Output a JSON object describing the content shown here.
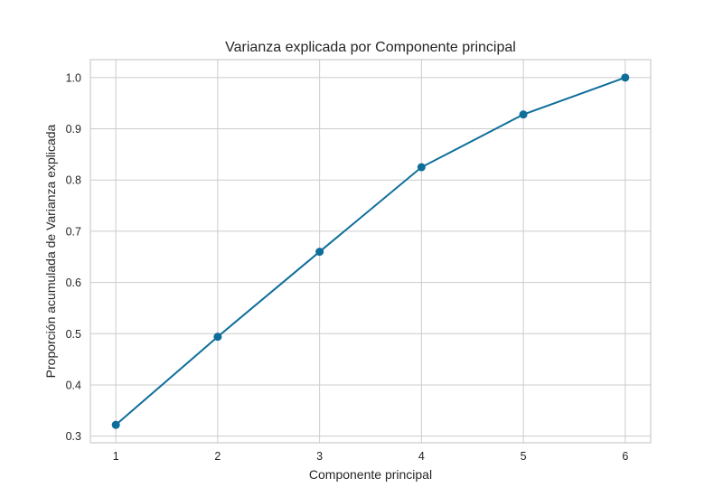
{
  "chart_data": {
    "type": "line",
    "title": "Varianza explicada por Componente principal",
    "xlabel": "Componente principal",
    "ylabel": "Proporción acumulada de Varianza explicada",
    "x": [
      1,
      2,
      3,
      4,
      5,
      6
    ],
    "series": [
      {
        "values": [
          0.322,
          0.494,
          0.66,
          0.825,
          0.928,
          1.0
        ],
        "color": "#0e6e9a"
      }
    ],
    "xticks": [
      "1",
      "2",
      "3",
      "4",
      "5",
      "6"
    ],
    "yticks": [
      "0.3",
      "0.4",
      "0.5",
      "0.6",
      "0.7",
      "0.8",
      "0.9",
      "1.0"
    ],
    "xlim": [
      0.75,
      6.25
    ],
    "ylim": [
      0.287,
      1.035
    ],
    "grid": true,
    "markers": true
  }
}
